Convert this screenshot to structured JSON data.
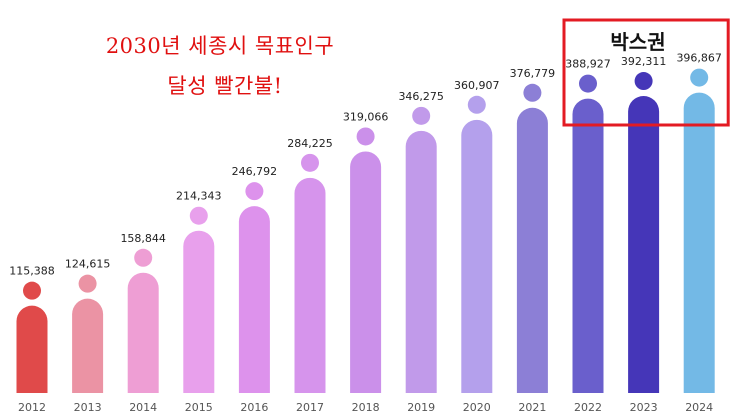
{
  "headline": {
    "line1": "2030년 세종시 목표인구",
    "line2": "달성 빨간불!"
  },
  "highlight_box": {
    "label": "박스권",
    "border_color": "#e31b23"
  },
  "chart_data": {
    "type": "bar",
    "title": "",
    "xlabel": "",
    "ylabel": "",
    "ylim": [
      0,
      420000
    ],
    "grid": false,
    "categories": [
      "2012",
      "2013",
      "2014",
      "2015",
      "2016",
      "2017",
      "2018",
      "2019",
      "2020",
      "2021",
      "2022",
      "2023",
      "2024"
    ],
    "values": [
      115388,
      124615,
      158844,
      214343,
      246792,
      284225,
      319066,
      346275,
      360907,
      376779,
      388927,
      392311,
      396867
    ],
    "value_labels": [
      "115,388",
      "124,615",
      "158,844",
      "214,343",
      "246,792",
      "284,225",
      "319,066",
      "346,275",
      "360,907",
      "376,779",
      "388,927",
      "392,311",
      "396,867"
    ],
    "colors": [
      "#e04a4a",
      "#eb93a4",
      "#ee9ed4",
      "#e8a0ec",
      "#dd92ec",
      "#d694ec",
      "#cb90ea",
      "#c19aea",
      "#b4a0ec",
      "#8c7fd6",
      "#6a5fcc",
      "#4536b8",
      "#73b9e6"
    ],
    "highlighted_categories": [
      "2022",
      "2023",
      "2024"
    ]
  }
}
